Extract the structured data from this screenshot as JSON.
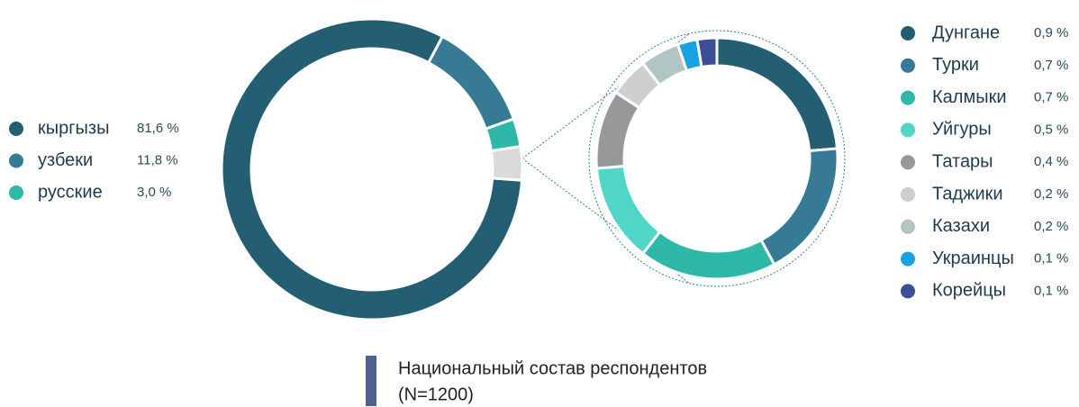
{
  "chart_data": [
    {
      "type": "donut",
      "title": "Национальный состав респондентов",
      "subtitle": "(N=1200)",
      "categories": [
        "кыргызы",
        "узбеки",
        "русские",
        null
      ],
      "values": [
        81.6,
        11.8,
        3.0,
        3.6
      ],
      "value_labels": [
        "81,6 %",
        "11,8 %",
        "3,0 %",
        null
      ],
      "colors": [
        "#245e73",
        "#377a96",
        "#2db8a8",
        "#dadada"
      ]
    },
    {
      "type": "donut",
      "categories": [
        "Дунгане",
        "Турки",
        "Калмыки",
        "Уйгуры",
        "Татары",
        "Таджики",
        "Казахи",
        "Украинцы",
        "Корейцы"
      ],
      "values": [
        0.9,
        0.7,
        0.7,
        0.5,
        0.4,
        0.2,
        0.2,
        0.1,
        0.1
      ],
      "value_labels": [
        "0,9 %",
        "0,7 %",
        "0,7 %",
        "0,5 %",
        "0,4 %",
        "0,2 %",
        "0,2 %",
        "0,1 %",
        "0,1 %"
      ],
      "colors": [
        "#245e73",
        "#377a96",
        "#2db8a8",
        "#4fd6c6",
        "#989898",
        "#cfcfcf",
        "#b3c6c6",
        "#16a2e3",
        "#3b4e96"
      ]
    }
  ]
}
